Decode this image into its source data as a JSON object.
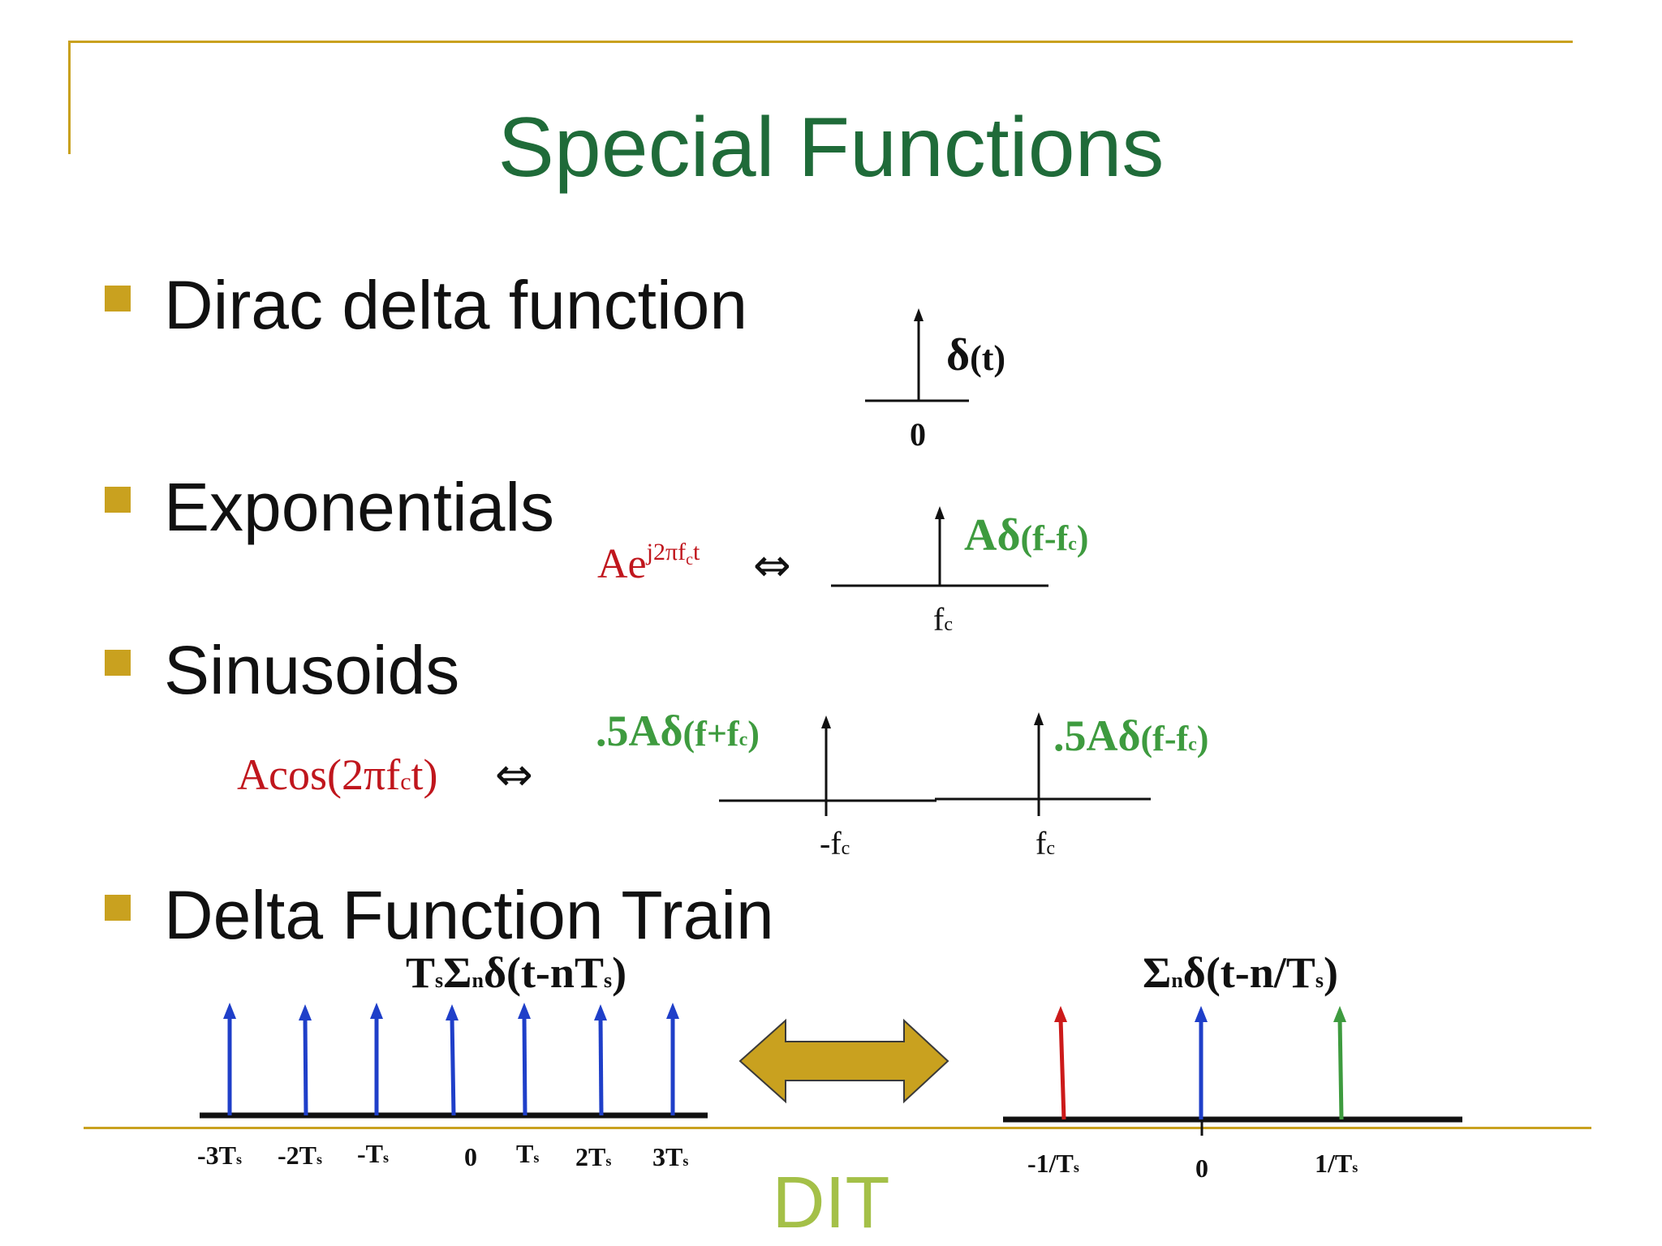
{
  "title": "Special Functions",
  "bullets": [
    "Dirac delta function",
    "Exponentials",
    "Sinusoids",
    "Delta Function Train"
  ],
  "dirac": {
    "label_symbol": "δ",
    "label_arg": "(t)",
    "tick": "0"
  },
  "exponential": {
    "lhs_base": "Ae",
    "lhs_exp": "j2πf",
    "lhs_exp_sub": "c",
    "lhs_exp_tail": "t",
    "arrow": "⇔",
    "rhs_coef": "A",
    "rhs_symbol": "δ",
    "rhs_arg_pre": "(f-f",
    "rhs_arg_sub": "c",
    "rhs_arg_post": ")",
    "tick": "f",
    "tick_sub": "c"
  },
  "sinusoid": {
    "lhs_pre": "Acos(2πf",
    "lhs_sub": "c",
    "lhs_post": "t)",
    "arrow": "⇔",
    "left_coef": ".5A",
    "left_symbol": "δ",
    "left_arg_pre": "(f+f",
    "left_arg_sub": "c",
    "left_arg_post": ")",
    "right_coef": ".5A",
    "right_symbol": "δ",
    "right_arg_pre": "(f-f",
    "right_arg_sub": "c",
    "right_arg_post": ")",
    "tick_left": "-f",
    "tick_left_sub": "c",
    "tick_right": "f",
    "tick_right_sub": "c"
  },
  "train": {
    "left_formula": {
      "t": "T",
      "t_sub": "s",
      "sigma": "Σ",
      "sigma_sub": "n",
      "delta": "δ",
      "arg_pre": "(t-nT",
      "arg_sub": "s",
      "arg_post": ")"
    },
    "right_formula": {
      "sigma": "Σ",
      "sigma_sub": "n",
      "delta": "δ",
      "arg_pre": "(t-n/T",
      "arg_sub": "s",
      "arg_post": ")"
    },
    "left_ticks": [
      {
        "main": "-3T",
        "sub": "s"
      },
      {
        "main": "-2T",
        "sub": "s"
      },
      {
        "main": "-T",
        "sub": "s"
      },
      {
        "main": "0",
        "sub": ""
      },
      {
        "main": "T",
        "sub": "s"
      },
      {
        "main": "2T",
        "sub": "s"
      },
      {
        "main": "3T",
        "sub": "s"
      }
    ],
    "right_ticks": [
      {
        "main": "-1/T",
        "sub": "s"
      },
      {
        "main": "0",
        "sub": ""
      },
      {
        "main": "1/T",
        "sub": "s"
      }
    ]
  },
  "footer": "DIT",
  "colors": {
    "accent_gold": "#c9a11f",
    "title_green": "#1f6b39",
    "formula_red": "#c0161d",
    "formula_green": "#3e9b3f",
    "arrow_blue": "#1f3fc9",
    "arrow_red": "#cc1a1a",
    "arrow_green": "#3e9b3f",
    "footer_green": "#a4c048"
  }
}
